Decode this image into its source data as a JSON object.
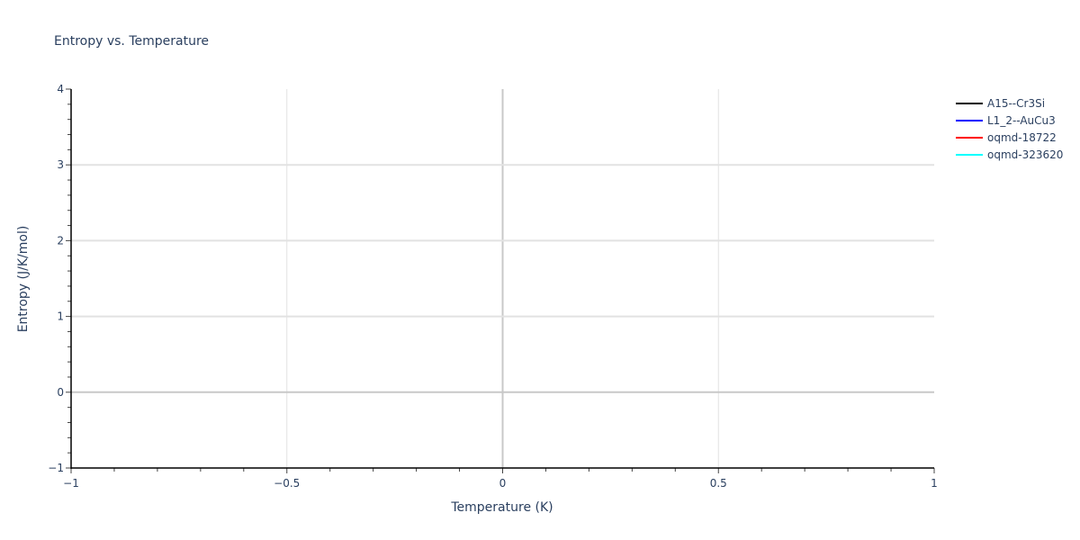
{
  "chart_data": {
    "type": "line",
    "title": "Entropy vs. Temperature",
    "xlabel": "Temperature (K)",
    "ylabel": "Entropy (J/K/mol)",
    "xlim": [
      -1,
      1
    ],
    "ylim": [
      -1,
      4
    ],
    "x_ticks": [
      -1,
      -0.5,
      0,
      0.5,
      1
    ],
    "x_tick_labels": [
      "−1",
      "−0.5",
      "0",
      "0.5",
      "1"
    ],
    "y_ticks": [
      -1,
      0,
      1,
      2,
      3,
      4
    ],
    "y_tick_labels": [
      "−1",
      "0",
      "1",
      "2",
      "3",
      "4"
    ],
    "grid": true,
    "legend_position": "top-right",
    "series": [
      {
        "name": "A15--Cr3Si",
        "color": "#000000",
        "x": [],
        "y": []
      },
      {
        "name": "L1_2--AuCu3",
        "color": "#0000ff",
        "x": [],
        "y": []
      },
      {
        "name": "oqmd-18722",
        "color": "#ff0000",
        "x": [],
        "y": []
      },
      {
        "name": "oqmd-323620",
        "color": "#00ffff",
        "x": [],
        "y": []
      }
    ]
  }
}
